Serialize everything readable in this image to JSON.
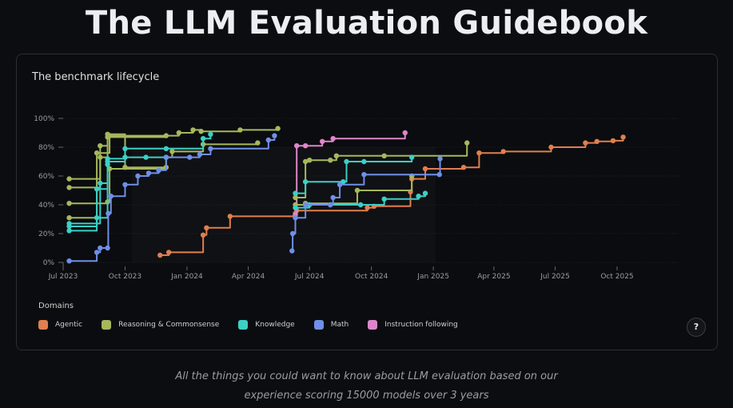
{
  "header": {
    "title": "The LLM Evaluation Guidebook"
  },
  "card": {
    "title": "The benchmark lifecycle",
    "help_label": "?"
  },
  "subtitle": {
    "line1": "All the things you could want to know about LLM evaluation based on our",
    "line2": "experience scoring 15000 models over 3 years"
  },
  "legend": {
    "title": "Domains",
    "items": [
      {
        "label": "Agentic",
        "color": "#e07f4f"
      },
      {
        "label": "Reasoning & Commonsense",
        "color": "#a6b85c"
      },
      {
        "label": "Knowledge",
        "color": "#3ccfc5"
      },
      {
        "label": "Math",
        "color": "#6f8fe8"
      },
      {
        "label": "Instruction following",
        "color": "#de86c9"
      }
    ]
  },
  "chart_data": {
    "type": "line",
    "step": true,
    "title": "The benchmark lifecycle",
    "xlabel": "",
    "ylabel": "",
    "xlim": [
      "2023-06-20",
      "2025-11-20"
    ],
    "ylim": [
      0,
      100
    ],
    "x_ticks": [
      {
        "date": "2023-07-01",
        "label": "Jul 2023"
      },
      {
        "date": "2023-10-01",
        "label": "Oct 2023"
      },
      {
        "date": "2024-01-01",
        "label": "Jan 2024"
      },
      {
        "date": "2024-04-01",
        "label": "Apr 2024"
      },
      {
        "date": "2024-07-01",
        "label": "Jul 2024"
      },
      {
        "date": "2024-10-01",
        "label": "Oct 2024"
      },
      {
        "date": "2025-01-01",
        "label": "Jan 2025"
      },
      {
        "date": "2025-04-01",
        "label": "Apr 2025"
      },
      {
        "date": "2025-07-01",
        "label": "Jul 2025"
      },
      {
        "date": "2025-10-01",
        "label": "Oct 2025"
      }
    ],
    "y_ticks": [
      {
        "value": 0,
        "label": "0%"
      },
      {
        "value": 20,
        "label": "20%"
      },
      {
        "value": 40,
        "label": "40%"
      },
      {
        "value": 60,
        "label": "60%"
      },
      {
        "value": 80,
        "label": "80%"
      },
      {
        "value": 100,
        "label": "100%"
      }
    ],
    "grid": true,
    "legend_position": "bottom",
    "series": [
      {
        "domain": "Agentic",
        "points": [
          [
            "2023-11-22",
            5
          ],
          [
            "2023-12-05",
            7
          ],
          [
            "2024-01-25",
            19
          ],
          [
            "2024-01-30",
            24
          ],
          [
            "2024-03-05",
            32
          ],
          [
            "2024-06-10",
            34
          ],
          [
            "2024-06-12",
            36
          ],
          [
            "2024-09-25",
            38
          ],
          [
            "2024-10-05",
            39
          ],
          [
            "2024-11-28",
            49
          ],
          [
            "2024-11-30",
            58
          ],
          [
            "2024-12-20",
            65
          ],
          [
            "2025-02-15",
            66
          ],
          [
            "2025-03-10",
            76
          ],
          [
            "2025-04-15",
            77
          ],
          [
            "2025-06-25",
            80
          ],
          [
            "2025-08-15",
            83
          ],
          [
            "2025-09-01",
            84
          ],
          [
            "2025-09-25",
            84.5
          ],
          [
            "2025-10-10",
            87
          ]
        ]
      },
      {
        "domain": "Reasoning & Commonsense",
        "points": [
          [
            "2023-07-10",
            31
          ],
          [
            "2023-08-20",
            76
          ],
          [
            "2023-09-08",
            88
          ],
          [
            "2023-12-20",
            90
          ],
          [
            "2024-01-10",
            92
          ],
          [
            "2024-01-22",
            91
          ],
          [
            "2024-03-20",
            92
          ],
          [
            "2024-05-15",
            93
          ]
        ]
      },
      {
        "domain": "Reasoning & Commonsense",
        "points": [
          [
            "2023-07-10",
            52
          ],
          [
            "2023-08-25",
            73
          ],
          [
            "2023-09-05",
            87
          ],
          [
            "2023-12-01",
            88
          ]
        ]
      },
      {
        "domain": "Reasoning & Commonsense",
        "points": [
          [
            "2023-07-10",
            41
          ],
          [
            "2023-09-05",
            42
          ],
          [
            "2023-09-08",
            65
          ],
          [
            "2023-12-01",
            73
          ],
          [
            "2023-12-10",
            77
          ],
          [
            "2024-01-25",
            82
          ],
          [
            "2024-04-15",
            83
          ]
        ]
      },
      {
        "domain": "Reasoning & Commonsense",
        "points": [
          [
            "2023-07-10",
            58
          ],
          [
            "2023-08-25",
            81
          ],
          [
            "2023-09-05",
            89
          ],
          [
            "2023-10-01",
            66
          ],
          [
            "2023-12-01",
            66
          ]
        ]
      },
      {
        "domain": "Knowledge",
        "points": [
          [
            "2023-07-10",
            22
          ],
          [
            "2023-08-20",
            31
          ],
          [
            "2023-09-05",
            72
          ],
          [
            "2023-10-01",
            79
          ],
          [
            "2023-12-01",
            79
          ],
          [
            "2024-01-25",
            86
          ],
          [
            "2024-02-05",
            89
          ]
        ]
      },
      {
        "domain": "Knowledge",
        "points": [
          [
            "2023-07-10",
            27
          ],
          [
            "2023-08-25",
            55
          ],
          [
            "2023-09-05",
            70
          ],
          [
            "2023-10-01",
            73
          ],
          [
            "2023-11-01",
            73
          ],
          [
            "2023-12-01",
            73
          ]
        ]
      },
      {
        "domain": "Knowledge",
        "points": [
          [
            "2023-07-10",
            25
          ],
          [
            "2023-08-20",
            51
          ],
          [
            "2023-09-05",
            68
          ]
        ]
      },
      {
        "domain": "Math",
        "points": [
          [
            "2023-07-10",
            1
          ],
          [
            "2023-08-20",
            7
          ],
          [
            "2023-08-25",
            10
          ],
          [
            "2023-09-05",
            10
          ],
          [
            "2023-09-06",
            34
          ],
          [
            "2023-09-10",
            46
          ],
          [
            "2023-10-01",
            54
          ],
          [
            "2023-10-20",
            60
          ],
          [
            "2023-11-05",
            62
          ],
          [
            "2023-11-20",
            64
          ],
          [
            "2023-12-01",
            73
          ],
          [
            "2024-01-05",
            73
          ],
          [
            "2024-01-20",
            75
          ],
          [
            "2024-02-05",
            79
          ],
          [
            "2024-05-01",
            85
          ],
          [
            "2024-05-10",
            88
          ]
        ]
      },
      {
        "domain": "Instruction following",
        "points": [
          [
            "2024-06-10",
            33
          ],
          [
            "2024-06-12",
            81
          ],
          [
            "2024-06-25",
            81
          ],
          [
            "2024-07-20",
            84
          ],
          [
            "2024-08-05",
            86
          ],
          [
            "2024-11-20",
            90
          ]
        ]
      },
      {
        "domain": "Reasoning & Commonsense",
        "points": [
          [
            "2024-06-10",
            45
          ],
          [
            "2024-06-25",
            70
          ],
          [
            "2024-07-01",
            71
          ],
          [
            "2024-08-01",
            71
          ],
          [
            "2024-08-10",
            74
          ],
          [
            "2024-10-20",
            74
          ],
          [
            "2025-02-20",
            83
          ]
        ]
      },
      {
        "domain": "Reasoning & Commonsense",
        "points": [
          [
            "2024-06-10",
            40
          ],
          [
            "2024-06-25",
            41
          ],
          [
            "2024-09-10",
            50
          ],
          [
            "2024-11-30",
            60
          ]
        ]
      },
      {
        "domain": "Knowledge",
        "points": [
          [
            "2024-06-10",
            48
          ],
          [
            "2024-06-25",
            56
          ],
          [
            "2024-08-20",
            56
          ],
          [
            "2024-08-25",
            70
          ],
          [
            "2024-09-20",
            70
          ],
          [
            "2024-11-30",
            73
          ]
        ]
      },
      {
        "domain": "Knowledge",
        "points": [
          [
            "2024-06-10",
            38
          ],
          [
            "2024-07-01",
            40
          ],
          [
            "2024-08-01",
            40
          ],
          [
            "2024-09-15",
            40
          ],
          [
            "2024-10-20",
            44
          ],
          [
            "2024-12-10",
            46
          ],
          [
            "2024-12-20",
            48
          ]
        ]
      },
      {
        "domain": "Math",
        "points": [
          [
            "2024-06-05",
            8
          ],
          [
            "2024-06-06",
            20
          ],
          [
            "2024-06-10",
            31
          ],
          [
            "2024-06-25",
            40
          ],
          [
            "2024-08-01",
            40
          ],
          [
            "2024-08-05",
            45
          ],
          [
            "2024-08-15",
            54
          ],
          [
            "2024-09-20",
            61
          ],
          [
            "2025-01-10",
            61
          ],
          [
            "2025-01-11",
            72
          ]
        ]
      }
    ]
  }
}
